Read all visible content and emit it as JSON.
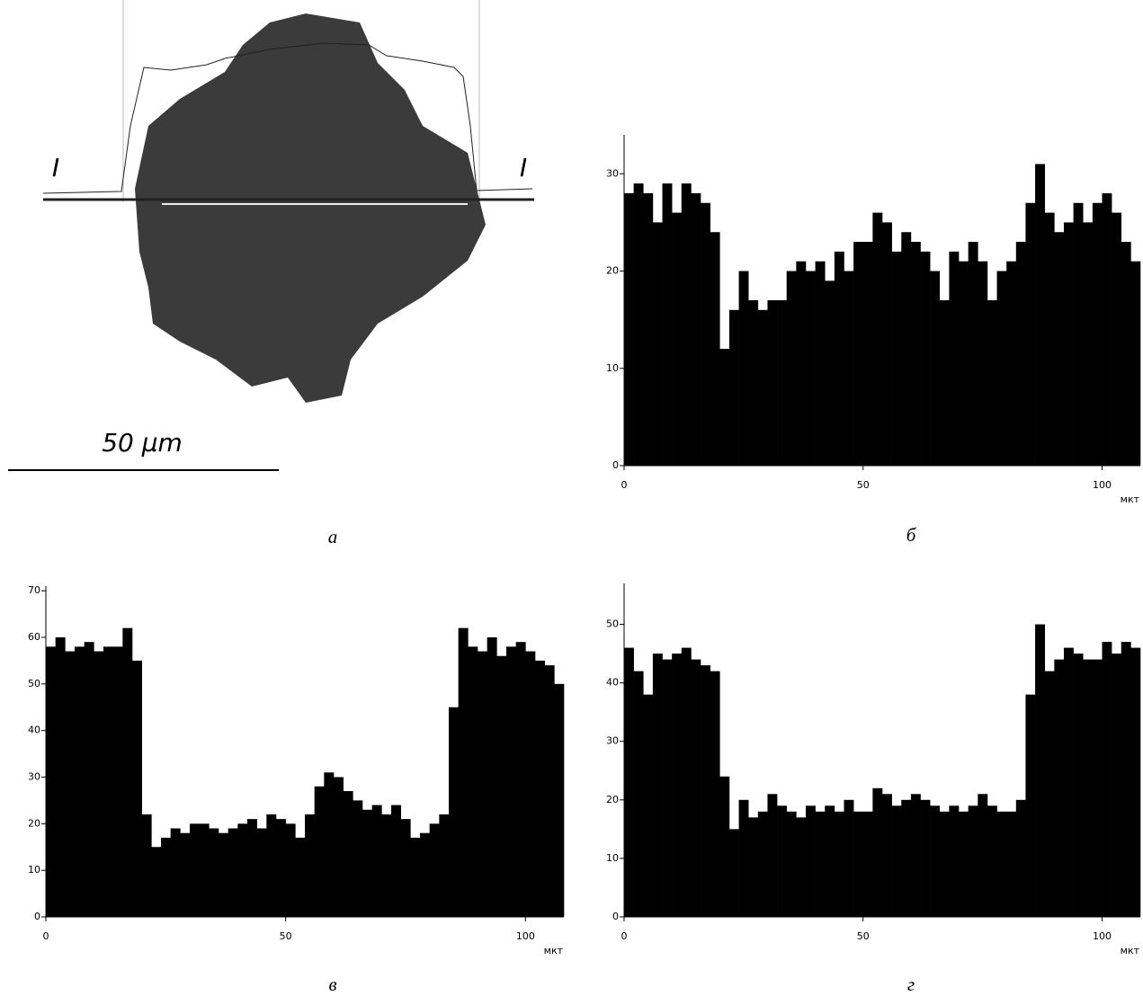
{
  "micrograph": {
    "caption": "а",
    "marker_left": "I",
    "marker_right": "I",
    "scale_label": "50 μm"
  },
  "chart_data": [
    {
      "type": "histogram",
      "caption": "б",
      "x_unit": "мкт",
      "bins": [
        0,
        2,
        4,
        6,
        8,
        10,
        12,
        14,
        16,
        18,
        20,
        22,
        24,
        26,
        28,
        30,
        32,
        34,
        36,
        38,
        40,
        42,
        44,
        46,
        48,
        50,
        52,
        54,
        56,
        58,
        60,
        62,
        64,
        66,
        68,
        70,
        72,
        74,
        76,
        78,
        80,
        82,
        84,
        86,
        88,
        90,
        92,
        94,
        96,
        98,
        100,
        102,
        104,
        106,
        108
      ],
      "values": [
        28,
        29,
        28,
        25,
        29,
        26,
        29,
        28,
        27,
        24,
        12,
        16,
        20,
        17,
        16,
        17,
        17,
        20,
        21,
        20,
        21,
        19,
        22,
        20,
        23,
        23,
        26,
        25,
        22,
        24,
        23,
        22,
        20,
        17,
        22,
        21,
        23,
        21,
        17,
        20,
        21,
        23,
        27,
        31,
        26,
        24,
        25,
        27,
        25,
        27,
        28,
        26,
        23,
        21
      ],
      "color": "#000000",
      "xlim": [
        0,
        108
      ],
      "ylim": [
        0,
        34
      ],
      "xticks": [
        0,
        50,
        100
      ],
      "yticks": [
        0,
        10,
        20,
        30
      ]
    },
    {
      "type": "histogram",
      "caption": "в",
      "x_unit": "мкт",
      "bins": [
        0,
        2,
        4,
        6,
        8,
        10,
        12,
        14,
        16,
        18,
        20,
        22,
        24,
        26,
        28,
        30,
        32,
        34,
        36,
        38,
        40,
        42,
        44,
        46,
        48,
        50,
        52,
        54,
        56,
        58,
        60,
        62,
        64,
        66,
        68,
        70,
        72,
        74,
        76,
        78,
        80,
        82,
        84,
        86,
        88,
        90,
        92,
        94,
        96,
        98,
        100,
        102,
        104,
        106,
        108
      ],
      "values": [
        58,
        60,
        57,
        58,
        59,
        57,
        58,
        58,
        62,
        55,
        22,
        15,
        17,
        19,
        18,
        20,
        20,
        19,
        18,
        19,
        20,
        21,
        19,
        22,
        21,
        20,
        17,
        22,
        28,
        31,
        30,
        27,
        25,
        23,
        24,
        22,
        24,
        21,
        17,
        18,
        20,
        22,
        45,
        62,
        58,
        57,
        60,
        56,
        58,
        59,
        57,
        55,
        54,
        50
      ],
      "color": "#000000",
      "xlim": [
        0,
        108
      ],
      "ylim": [
        0,
        71
      ],
      "xticks": [
        0,
        50,
        100
      ],
      "yticks": [
        0,
        10,
        20,
        30,
        40,
        50,
        60,
        70
      ]
    },
    {
      "type": "histogram",
      "caption": "г",
      "x_unit": "мкт",
      "bins": [
        0,
        2,
        4,
        6,
        8,
        10,
        12,
        14,
        16,
        18,
        20,
        22,
        24,
        26,
        28,
        30,
        32,
        34,
        36,
        38,
        40,
        42,
        44,
        46,
        48,
        50,
        52,
        54,
        56,
        58,
        60,
        62,
        64,
        66,
        68,
        70,
        72,
        74,
        76,
        78,
        80,
        82,
        84,
        86,
        88,
        90,
        92,
        94,
        96,
        98,
        100,
        102,
        104,
        106,
        108
      ],
      "values": [
        46,
        42,
        38,
        45,
        44,
        45,
        46,
        44,
        43,
        42,
        24,
        15,
        20,
        17,
        18,
        21,
        19,
        18,
        17,
        19,
        18,
        19,
        18,
        20,
        18,
        18,
        22,
        21,
        19,
        20,
        21,
        20,
        19,
        18,
        19,
        18,
        19,
        21,
        19,
        18,
        18,
        20,
        38,
        50,
        42,
        44,
        46,
        45,
        44,
        44,
        47,
        45,
        47,
        46
      ],
      "color": "#000000",
      "xlim": [
        0,
        108
      ],
      "ylim": [
        0,
        57
      ],
      "xticks": [
        0,
        50,
        100
      ],
      "yticks": [
        0,
        10,
        20,
        30,
        40,
        50
      ]
    }
  ]
}
